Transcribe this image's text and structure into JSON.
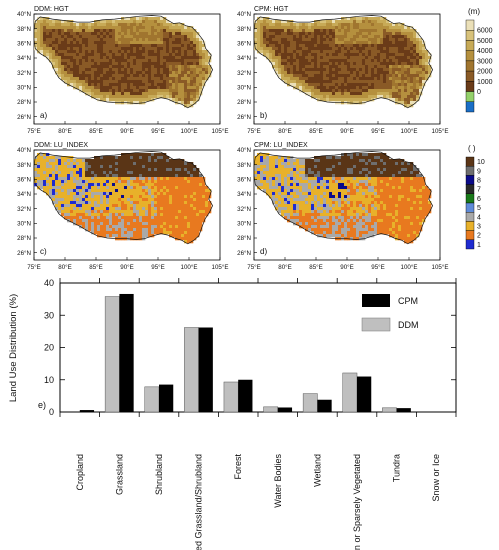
{
  "colors": {
    "hgt": [
      "#1a6ec6",
      "#94d16a",
      "#6a3b18",
      "#8a5a26",
      "#a0752f",
      "#b5903e",
      "#c7aa57",
      "#d8c27b",
      "#ebe0b8"
    ],
    "lu": [
      "#1f2bd0",
      "#e8791f",
      "#e8b12a",
      "#a9a9a9",
      "#5f8bd8",
      "#1a7a1a",
      "#2a2a2a",
      "#0b0b8a",
      "#6e6e6e",
      "#5a3516"
    ],
    "bar_cpm": "#000000",
    "bar_ddm": "#bfbfbf",
    "background_fill": "#ffffff"
  },
  "maps": [
    {
      "title": "DDM: HGT",
      "panel": "a)",
      "variable": "hgt"
    },
    {
      "title": "CPM: HGT",
      "panel": "b)",
      "variable": "hgt"
    },
    {
      "title": "DDM: LU_INDEX",
      "panel": "c)",
      "variable": "lu"
    },
    {
      "title": "CPM: LU_INDEX",
      "panel": "d)",
      "variable": "lu"
    }
  ],
  "map_lat_labels": [
    "40°N",
    "38°N",
    "36°N",
    "34°N",
    "32°N",
    "30°N",
    "28°N",
    "26°N"
  ],
  "map_lon_labels": [
    "75°E",
    "80°E",
    "85°E",
    "90°E",
    "95°E",
    "100°E",
    "105°E"
  ],
  "hgt_colorbar": {
    "unit": "(m)",
    "ticks": [
      "6000",
      "5000",
      "4000",
      "3000",
      "2000",
      "1000",
      "0"
    ]
  },
  "lu_colorbar": {
    "unit": "( )",
    "ticks": [
      "10",
      "9",
      "8",
      "7",
      "6",
      "5",
      "4",
      "3",
      "2",
      "1"
    ]
  },
  "chart_data": {
    "type": "bar",
    "panel": "e)",
    "ylabel": "Land Use Distribution (%)",
    "ylim": [
      0,
      40
    ],
    "yticks": [
      "0",
      "10",
      "20",
      "30",
      "40"
    ],
    "legend_placement": "top-right",
    "categories": [
      "Cropland",
      "Grassland",
      "Shrubland",
      "Mixed Grassland/Shrubland",
      "Forest",
      "Water Bodies",
      "Wetland",
      "Baren or Sparsely Vegetated",
      "Tundra",
      "Snow or Ice"
    ],
    "series": [
      {
        "name": "DDM",
        "values": [
          0,
          35.8,
          7.8,
          26.2,
          9.3,
          1.6,
          5.7,
          12.1,
          1.3,
          0
        ]
      },
      {
        "name": "CPM",
        "values": [
          0.6,
          36.6,
          8.5,
          26.2,
          10.0,
          1.4,
          3.8,
          11.0,
          1.2,
          0
        ]
      }
    ]
  }
}
